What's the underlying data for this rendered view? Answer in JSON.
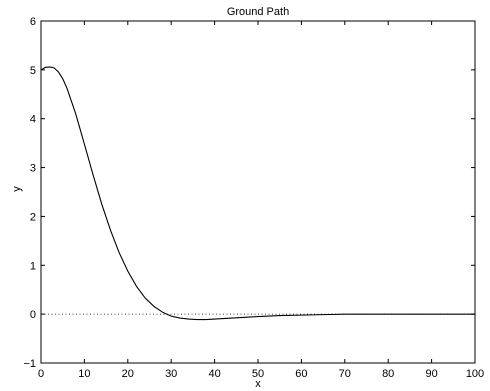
{
  "chart_data": {
    "type": "line",
    "title": "Ground Path",
    "xlabel": "x",
    "ylabel": "y",
    "xlim": [
      0,
      100
    ],
    "ylim": [
      -1,
      6
    ],
    "xticks": [
      0,
      10,
      20,
      30,
      40,
      50,
      60,
      70,
      80,
      90,
      100
    ],
    "yticks": [
      -1,
      0,
      1,
      2,
      3,
      4,
      5,
      6
    ],
    "grid": false,
    "colors": {
      "line": "#000000",
      "zero_line": "#000000",
      "axes": "#000000"
    },
    "series": [
      {
        "style": "solid",
        "x": [
          0,
          1,
          2,
          3,
          4,
          5,
          6,
          8,
          10,
          12,
          14,
          16,
          18,
          20,
          22,
          24,
          26,
          28,
          30,
          32,
          34,
          36,
          38,
          40,
          42,
          44,
          46,
          48,
          50,
          55,
          60,
          65,
          70,
          75,
          80,
          85,
          90,
          95,
          100
        ],
        "y": [
          5.0,
          5.05,
          5.06,
          5.04,
          4.96,
          4.82,
          4.62,
          4.1,
          3.48,
          2.85,
          2.25,
          1.72,
          1.26,
          0.88,
          0.57,
          0.33,
          0.16,
          0.04,
          -0.04,
          -0.08,
          -0.1,
          -0.11,
          -0.11,
          -0.1,
          -0.09,
          -0.08,
          -0.07,
          -0.06,
          -0.05,
          -0.03,
          -0.02,
          -0.01,
          0.0,
          0.0,
          0.0,
          0.0,
          0.0,
          0.0,
          0.0
        ]
      },
      {
        "style": "dotted",
        "x": [
          0,
          100
        ],
        "y": [
          0,
          0
        ]
      }
    ]
  }
}
